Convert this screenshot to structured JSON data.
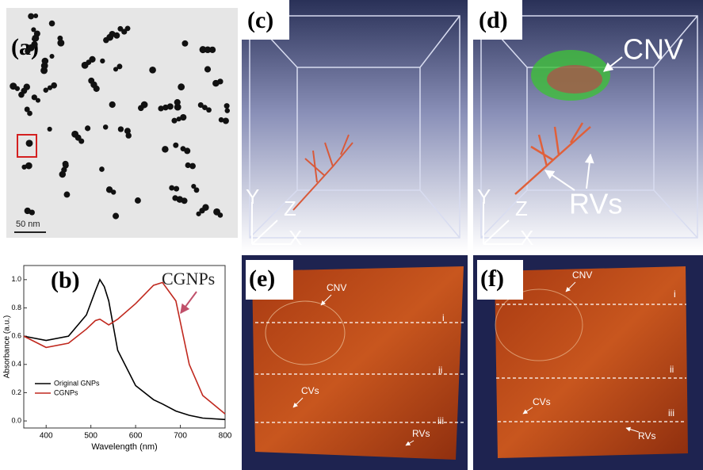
{
  "panels": {
    "a": {
      "label": "(a)",
      "scale_bar": "50 nm"
    },
    "c": {
      "label": "(c)",
      "axes": [
        "Y",
        "Z",
        "X"
      ]
    },
    "d": {
      "label": "(d)",
      "annotations": [
        "CNV",
        "RVs"
      ],
      "axes": [
        "Y",
        "Z",
        "X"
      ]
    },
    "e": {
      "label": "(e)",
      "annotations": [
        "CNV",
        "CVs",
        "RVs"
      ],
      "lines": [
        "i",
        "ii",
        "iii"
      ]
    },
    "f": {
      "label": "(f)",
      "annotations": [
        "CNV",
        "CVs",
        "RVs"
      ],
      "lines": [
        "i",
        "ii",
        "iii"
      ]
    }
  },
  "chart_data": {
    "type": "line",
    "label": "(b)",
    "annotation": "CGNPs",
    "x_label": "Wavelength (nm)",
    "y_label": "Absorbance (a.u.)",
    "x": [
      350,
      400,
      450,
      490,
      510,
      520,
      530,
      540,
      560,
      600,
      640,
      660,
      690,
      720,
      750,
      800
    ],
    "series": [
      {
        "name": "Original GNPs",
        "color": "#000000",
        "values": [
          0.6,
          0.57,
          0.6,
          0.75,
          0.92,
          1.0,
          0.95,
          0.85,
          0.5,
          0.25,
          0.15,
          0.12,
          0.07,
          0.04,
          0.02,
          0.01
        ]
      },
      {
        "name": "CGNPs",
        "color": "#c0281e",
        "values": [
          0.6,
          0.52,
          0.55,
          0.65,
          0.71,
          0.72,
          0.7,
          0.68,
          0.72,
          0.83,
          0.96,
          0.98,
          0.85,
          0.4,
          0.18,
          0.05
        ]
      }
    ],
    "xlim": [
      350,
      800
    ],
    "ylim": [
      -0.05,
      1.1
    ],
    "xticks": [
      400,
      500,
      600,
      700,
      800
    ],
    "yticks": [
      {
        "value": 0,
        "label": "0.0"
      },
      0.2,
      0.4,
      0.6,
      0.8,
      {
        "value": 1,
        "label": "1.0"
      }
    ]
  }
}
